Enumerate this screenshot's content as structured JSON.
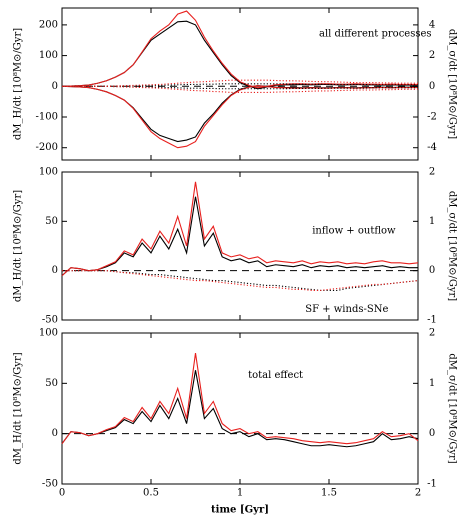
{
  "chart_data": [
    {
      "type": "line",
      "y_label": "dM_H/dt [10⁸M⊙/Gyr]",
      "y2_label": "dM_σ/dt [10⁸M⊙/Gyr]",
      "annotations": [
        "all different processes"
      ],
      "x": [
        0,
        0.05,
        0.1,
        0.15,
        0.2,
        0.25,
        0.3,
        0.35,
        0.4,
        0.45,
        0.5,
        0.55,
        0.6,
        0.65,
        0.7,
        0.75,
        0.8,
        0.85,
        0.9,
        0.95,
        1,
        1.05,
        1.1,
        1.15,
        1.2,
        1.25,
        1.3,
        1.35,
        1.4,
        1.45,
        1.5,
        1.55,
        1.6,
        1.65,
        1.7,
        1.75,
        1.8,
        1.85,
        1.9,
        1.95,
        2
      ],
      "xlim": [
        0,
        2
      ],
      "xticks": [
        0,
        0.5,
        1,
        1.5,
        2
      ],
      "ylim": [
        -240,
        255
      ],
      "yticks": [
        -200,
        -100,
        0,
        100,
        200
      ],
      "y2lim": [
        -4.8,
        5.1
      ],
      "y2ticks": [
        -4,
        -2,
        0,
        2,
        4
      ],
      "reference_line": 0,
      "series": [
        {
          "color": "#000000",
          "style": "solid",
          "values": [
            0,
            1,
            2,
            4,
            10,
            18,
            30,
            45,
            70,
            110,
            150,
            170,
            190,
            210,
            212,
            200,
            150,
            110,
            70,
            35,
            12,
            0,
            -8,
            -2,
            3,
            5,
            5,
            6,
            5,
            6,
            6,
            5,
            5,
            6,
            5,
            5,
            4,
            5,
            4,
            4,
            4
          ]
        },
        {
          "color": "#e8201e",
          "style": "solid",
          "values": [
            0,
            1,
            2,
            4,
            10,
            18,
            30,
            45,
            70,
            112,
            155,
            180,
            200,
            235,
            245,
            215,
            160,
            115,
            75,
            40,
            15,
            3,
            -5,
            0,
            5,
            7,
            8,
            8,
            7,
            8,
            8,
            7,
            7,
            8,
            7,
            7,
            6,
            7,
            6,
            6,
            6
          ]
        },
        {
          "color": "#000000",
          "style": "solid",
          "values": [
            0,
            -1,
            -2,
            -4,
            -10,
            -18,
            -30,
            -45,
            -70,
            -105,
            -140,
            -160,
            -170,
            -180,
            -175,
            -165,
            -120,
            -90,
            -55,
            -28,
            -10,
            -2,
            2,
            0,
            -3,
            -4,
            -4,
            -5,
            -4,
            -5,
            -5,
            -4,
            -4,
            -5,
            -4,
            -4,
            -3,
            -4,
            -3,
            -3,
            -3
          ]
        },
        {
          "color": "#e8201e",
          "style": "solid",
          "values": [
            0,
            -1,
            -2,
            -4,
            -10,
            -18,
            -30,
            -45,
            -72,
            -110,
            -148,
            -170,
            -185,
            -200,
            -195,
            -180,
            -130,
            -95,
            -60,
            -30,
            -12,
            -3,
            2,
            -1,
            -4,
            -5,
            -6,
            -6,
            -5,
            -6,
            -6,
            -5,
            -5,
            -6,
            -5,
            -5,
            -4,
            -5,
            -4,
            -4,
            -4
          ]
        },
        {
          "color": "#000000",
          "style": "dotted",
          "values": [
            0,
            0,
            0,
            0,
            0,
            0,
            1,
            1,
            2,
            2,
            3,
            3,
            4,
            5,
            6,
            6,
            7,
            7,
            8,
            8,
            8,
            8,
            8,
            8,
            8,
            8,
            7,
            7,
            7,
            7,
            6,
            6,
            6,
            6,
            6,
            5,
            5,
            5,
            5,
            5,
            5
          ]
        },
        {
          "color": "#e8201e",
          "style": "dotted",
          "values": [
            0,
            0,
            0,
            0,
            0,
            0,
            1,
            2,
            3,
            4,
            5,
            6,
            8,
            10,
            12,
            14,
            15,
            17,
            18,
            20,
            20,
            20,
            20,
            20,
            19,
            18,
            18,
            17,
            16,
            15,
            15,
            14,
            13,
            12,
            12,
            12,
            11,
            11,
            10,
            10,
            10
          ]
        },
        {
          "color": "#000000",
          "style": "dotted",
          "values": [
            0,
            0,
            0,
            0,
            0,
            0,
            -1,
            -1,
            -2,
            -2,
            -3,
            -3,
            -4,
            -5,
            -6,
            -6,
            -7,
            -7,
            -8,
            -8,
            -8,
            -8,
            -8,
            -8,
            -8,
            -8,
            -7,
            -7,
            -7,
            -7,
            -6,
            -6,
            -6,
            -6,
            -6,
            -5,
            -5,
            -5,
            -5,
            -5,
            -5
          ]
        },
        {
          "color": "#e8201e",
          "style": "dotted",
          "values": [
            0,
            0,
            0,
            0,
            0,
            0,
            -1,
            -2,
            -3,
            -4,
            -5,
            -6,
            -8,
            -10,
            -12,
            -14,
            -15,
            -17,
            -18,
            -20,
            -20,
            -20,
            -20,
            -20,
            -19,
            -18,
            -18,
            -17,
            -16,
            -15,
            -15,
            -14,
            -13,
            -12,
            -12,
            -12,
            -11,
            -11,
            -10,
            -10,
            -10
          ]
        }
      ]
    },
    {
      "type": "line",
      "y_label": "dM_H/dt [10⁸M⊙/Gyr]",
      "y2_label": "dM_σ/dt [10⁸M⊙/Gyr]",
      "annotations": [
        "inflow + outflow",
        "SF + winds-SNe"
      ],
      "x": [
        0,
        0.05,
        0.1,
        0.15,
        0.2,
        0.25,
        0.3,
        0.35,
        0.4,
        0.45,
        0.5,
        0.55,
        0.6,
        0.65,
        0.7,
        0.75,
        0.8,
        0.85,
        0.9,
        0.95,
        1,
        1.05,
        1.1,
        1.15,
        1.2,
        1.25,
        1.3,
        1.35,
        1.4,
        1.45,
        1.5,
        1.55,
        1.6,
        1.65,
        1.7,
        1.75,
        1.8,
        1.85,
        1.9,
        1.95,
        2
      ],
      "xlim": [
        0,
        2
      ],
      "xticks": [
        0,
        0.5,
        1,
        1.5,
        2
      ],
      "ylim": [
        -50,
        100
      ],
      "yticks": [
        -50,
        0,
        50,
        100
      ],
      "y2lim": [
        -1,
        2
      ],
      "y2ticks": [
        -1,
        0,
        1,
        2
      ],
      "reference_line": 0,
      "series": [
        {
          "color": "#000000",
          "style": "solid",
          "values": [
            -5,
            3,
            2,
            0,
            1,
            4,
            8,
            18,
            14,
            28,
            18,
            35,
            22,
            42,
            18,
            75,
            25,
            38,
            14,
            10,
            12,
            8,
            10,
            4,
            6,
            5,
            4,
            6,
            3,
            5,
            4,
            5,
            3,
            4,
            3,
            4,
            5,
            3,
            4,
            3,
            3
          ]
        },
        {
          "color": "#e8201e",
          "style": "solid",
          "values": [
            -5,
            3,
            2,
            0,
            1,
            5,
            9,
            20,
            16,
            32,
            22,
            40,
            28,
            55,
            25,
            90,
            32,
            45,
            18,
            14,
            16,
            12,
            14,
            8,
            10,
            9,
            8,
            10,
            7,
            9,
            8,
            9,
            7,
            8,
            7,
            9,
            10,
            8,
            8,
            7,
            8
          ]
        },
        {
          "color": "#000000",
          "style": "dotted",
          "values": [
            0,
            0,
            0,
            0,
            0,
            0,
            -1,
            -2,
            -2,
            -3,
            -4,
            -4,
            -5,
            -6,
            -7,
            -8,
            -9,
            -10,
            -10,
            -11,
            -12,
            -13,
            -14,
            -15,
            -15,
            -16,
            -17,
            -18,
            -19,
            -20,
            -20,
            -20,
            -18,
            -17,
            -16,
            -15,
            -14,
            -13,
            -12,
            -11,
            -10
          ]
        },
        {
          "color": "#e8201e",
          "style": "dotted",
          "values": [
            0,
            0,
            0,
            0,
            0,
            0,
            -1,
            -2,
            -3,
            -4,
            -5,
            -6,
            -7,
            -8,
            -9,
            -10,
            -10,
            -11,
            -12,
            -13,
            -14,
            -15,
            -16,
            -17,
            -17,
            -18,
            -19,
            -19,
            -20,
            -20,
            -19,
            -18,
            -17,
            -16,
            -15,
            -14,
            -14,
            -13,
            -12,
            -11,
            -10
          ]
        }
      ]
    },
    {
      "type": "line",
      "y_label": "dM_H/dt [10⁸M⊙/Gyr]",
      "y2_label": "dM_σ/dt [10⁸M⊙/Gyr]",
      "x_label": "time [Gyr]",
      "annotations": [
        "total effect"
      ],
      "x": [
        0,
        0.05,
        0.1,
        0.15,
        0.2,
        0.25,
        0.3,
        0.35,
        0.4,
        0.45,
        0.5,
        0.55,
        0.6,
        0.65,
        0.7,
        0.75,
        0.8,
        0.85,
        0.9,
        0.95,
        1,
        1.05,
        1.1,
        1.15,
        1.2,
        1.25,
        1.3,
        1.35,
        1.4,
        1.45,
        1.5,
        1.55,
        1.6,
        1.65,
        1.7,
        1.75,
        1.8,
        1.85,
        1.9,
        1.95,
        2
      ],
      "xlim": [
        0,
        2
      ],
      "xticks": [
        0,
        0.5,
        1,
        1.5,
        2
      ],
      "ylim": [
        -50,
        100
      ],
      "yticks": [
        -50,
        0,
        50,
        100
      ],
      "y2lim": [
        -1,
        2
      ],
      "y2ticks": [
        -1,
        0,
        1,
        2
      ],
      "reference_line": 0,
      "series": [
        {
          "color": "#000000",
          "style": "solid",
          "values": [
            -10,
            2,
            1,
            -2,
            0,
            3,
            6,
            14,
            10,
            22,
            12,
            28,
            15,
            35,
            10,
            63,
            15,
            25,
            5,
            0,
            2,
            -3,
            0,
            -6,
            -5,
            -6,
            -8,
            -10,
            -12,
            -12,
            -11,
            -12,
            -13,
            -12,
            -10,
            -8,
            0,
            -6,
            -5,
            -3,
            -5
          ]
        },
        {
          "color": "#e8201e",
          "style": "solid",
          "values": [
            -10,
            2,
            1,
            -2,
            0,
            4,
            7,
            16,
            12,
            26,
            15,
            32,
            20,
            45,
            15,
            80,
            20,
            32,
            10,
            3,
            5,
            0,
            2,
            -4,
            -3,
            -4,
            -5,
            -7,
            -8,
            -9,
            -8,
            -9,
            -10,
            -9,
            -7,
            -5,
            2,
            -3,
            -2,
            0,
            -7
          ]
        }
      ]
    }
  ]
}
